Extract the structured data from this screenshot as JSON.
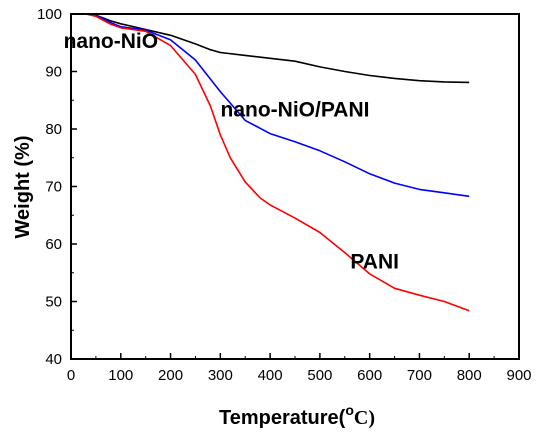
{
  "chart_data": {
    "type": "line",
    "title": "",
    "xlabel": "Temperature(",
    "xlabel_unit": "o",
    "xlabel_unit_tail": "C)",
    "ylabel": "Weight (%)",
    "xlim": [
      0,
      900
    ],
    "ylim": [
      40,
      100
    ],
    "x_ticks": [
      0,
      100,
      200,
      300,
      400,
      500,
      600,
      700,
      800,
      900
    ],
    "y_ticks": [
      40,
      50,
      60,
      70,
      80,
      90,
      100
    ],
    "grid": false,
    "legend": "inline labels",
    "series": [
      {
        "name": "nano-NiO",
        "color": "#000000",
        "points": [
          [
            30,
            100
          ],
          [
            50,
            99.8
          ],
          [
            80,
            98.8
          ],
          [
            100,
            98.3
          ],
          [
            150,
            97.3
          ],
          [
            200,
            96.3
          ],
          [
            250,
            94.8
          ],
          [
            280,
            93.8
          ],
          [
            300,
            93.3
          ],
          [
            350,
            92.8
          ],
          [
            400,
            92.3
          ],
          [
            450,
            91.8
          ],
          [
            500,
            90.8
          ],
          [
            550,
            90.0
          ],
          [
            600,
            89.3
          ],
          [
            650,
            88.8
          ],
          [
            700,
            88.4
          ],
          [
            750,
            88.2
          ],
          [
            800,
            88.1
          ]
        ]
      },
      {
        "name": "nano-NiO/PANI",
        "color": "#0000ff",
        "points": [
          [
            30,
            100
          ],
          [
            50,
            99.8
          ],
          [
            80,
            98.5
          ],
          [
            100,
            97.8
          ],
          [
            150,
            97.2
          ],
          [
            200,
            95.5
          ],
          [
            250,
            92.0
          ],
          [
            300,
            86.5
          ],
          [
            350,
            81.5
          ],
          [
            400,
            79.2
          ],
          [
            450,
            77.8
          ],
          [
            500,
            76.2
          ],
          [
            550,
            74.3
          ],
          [
            600,
            72.2
          ],
          [
            650,
            70.6
          ],
          [
            700,
            69.5
          ],
          [
            750,
            68.9
          ],
          [
            800,
            68.3
          ]
        ]
      },
      {
        "name": "PANI",
        "color": "#ff0000",
        "points": [
          [
            30,
            100
          ],
          [
            50,
            99.6
          ],
          [
            80,
            98.2
          ],
          [
            100,
            97.6
          ],
          [
            150,
            97.0
          ],
          [
            200,
            94.5
          ],
          [
            250,
            89.5
          ],
          [
            280,
            84.0
          ],
          [
            300,
            79.0
          ],
          [
            320,
            75.0
          ],
          [
            350,
            70.8
          ],
          [
            380,
            68.0
          ],
          [
            400,
            66.8
          ],
          [
            450,
            64.5
          ],
          [
            500,
            62.0
          ],
          [
            550,
            58.5
          ],
          [
            600,
            54.8
          ],
          [
            650,
            52.3
          ],
          [
            700,
            51.1
          ],
          [
            750,
            50.0
          ],
          [
            800,
            48.4
          ]
        ]
      }
    ],
    "labels": [
      {
        "text": "nano-NiO",
        "series": "nano-NiO"
      },
      {
        "text": "nano-NiO/PANI",
        "series": "nano-NiO/PANI"
      },
      {
        "text": "PANI",
        "series": "PANI"
      }
    ]
  }
}
